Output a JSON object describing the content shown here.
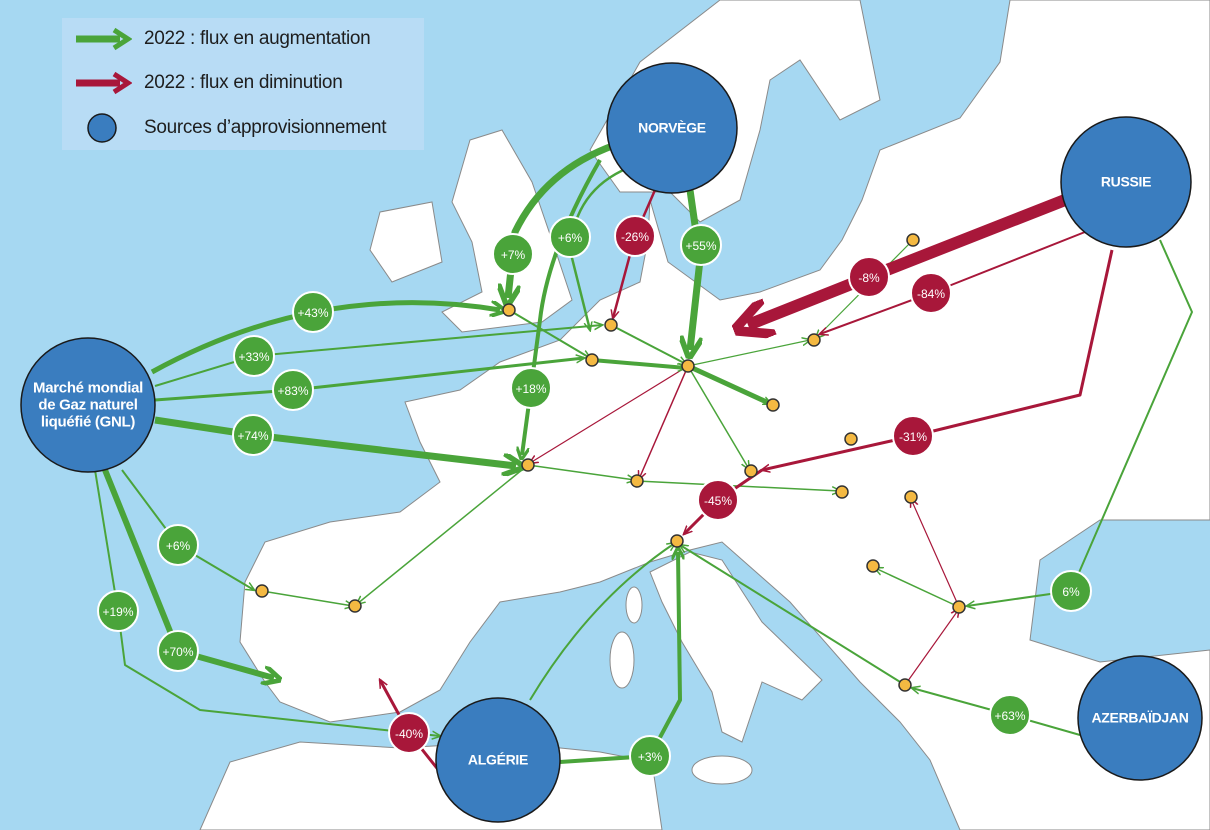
{
  "legend": {
    "items": [
      {
        "label": "2022 : flux en augmentation",
        "symbol": "green-arrow"
      },
      {
        "label": "2022 : flux en diminution",
        "symbol": "red-arrow"
      },
      {
        "label": "Sources d’approvisionnement",
        "symbol": "blue-circle"
      }
    ]
  },
  "colors": {
    "increase": "#4aa43a",
    "decrease": "#a8173a",
    "source": "#3a7dbf",
    "terminal": "#f4b942",
    "sea": "#a6d8f2",
    "land": "#ffffff"
  },
  "sources": [
    {
      "id": "norvege",
      "name": "NORVÈGE"
    },
    {
      "id": "russie",
      "name": "RUSSIE"
    },
    {
      "id": "gnl",
      "name": "Marché mondial de Gaz naturel liquéfié (GNL)"
    },
    {
      "id": "algerie",
      "name": "ALGÉRIE"
    },
    {
      "id": "azerbaidjan",
      "name": "AZERBAÏDJAN"
    }
  ],
  "flows": [
    {
      "label": "+7%",
      "trend": "augmentation",
      "source": "norvege"
    },
    {
      "label": "+6%",
      "trend": "augmentation",
      "source": "norvege"
    },
    {
      "label": "+55%",
      "trend": "augmentation",
      "source": "norvege"
    },
    {
      "label": "-26%",
      "trend": "diminution",
      "source": "norvege"
    },
    {
      "label": "+43%",
      "trend": "augmentation",
      "source": "gnl"
    },
    {
      "label": "+33%",
      "trend": "augmentation",
      "source": "gnl"
    },
    {
      "label": "+83%",
      "trend": "augmentation",
      "source": "gnl"
    },
    {
      "label": "+74%",
      "trend": "augmentation",
      "source": "gnl"
    },
    {
      "label": "+18%",
      "trend": "augmentation",
      "source": "norvege"
    },
    {
      "label": "+6%",
      "trend": "augmentation",
      "source": "gnl"
    },
    {
      "label": "+19%",
      "trend": "augmentation",
      "source": "gnl"
    },
    {
      "label": "+70%",
      "trend": "augmentation",
      "source": "gnl"
    },
    {
      "label": "+3%",
      "trend": "augmentation",
      "source": "algerie"
    },
    {
      "label": "-40%",
      "trend": "diminution",
      "source": "algerie"
    },
    {
      "label": "-8%",
      "trend": "diminution",
      "source": "russie"
    },
    {
      "label": "-84%",
      "trend": "diminution",
      "source": "russie"
    },
    {
      "label": "-31%",
      "trend": "diminution",
      "source": "russie"
    },
    {
      "label": "-45%",
      "trend": "diminution",
      "source": "russie"
    },
    {
      "label": "6%",
      "trend": "augmentation",
      "source": "russie"
    },
    {
      "label": "+63%",
      "trend": "augmentation",
      "source": "azerbaidjan"
    }
  ]
}
